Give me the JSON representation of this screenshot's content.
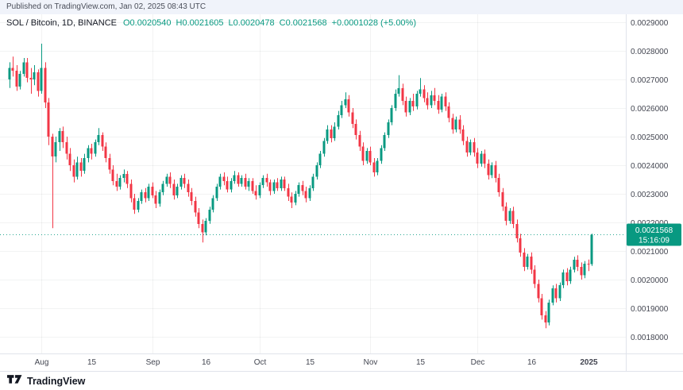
{
  "publish_bar": {
    "text": "Published on TradingView.com, Jan 02, 2025 08:43 UTC"
  },
  "legend": {
    "symbol": "SOL / Bitcoin, 1D, BINANCE",
    "open": "O0.0020540",
    "high": "H0.0021605",
    "low": "L0.0020478",
    "close": "C0.0021568",
    "change": "+0.0001028 (+5.00%)"
  },
  "footer": {
    "brand": "TradingView",
    "logo_icon": "tradingview-logo-icon"
  },
  "chart_data": {
    "type": "candlestick",
    "symbol": "SOL / Bitcoin",
    "interval": "1D",
    "exchange": "BINANCE",
    "title": "SOL / Bitcoin, 1D, BINANCE",
    "value_unit": 1e-07,
    "note": "candles are [open,high,low,close] in units of 0.0000001 BTC, one candle per day from 2024-07-23 to 2025-01-02",
    "price_axis": {
      "min": 0.0018,
      "max": 0.0029,
      "tick_step": 0.0001,
      "tick_labels": [
        "0.0029000",
        "0.0028000",
        "0.0027000",
        "0.0026000",
        "0.0025000",
        "0.0024000",
        "0.0023000",
        "0.0022000",
        "0.0021000",
        "0.0020000",
        "0.0019000",
        "0.0018000"
      ]
    },
    "time_axis": {
      "ticks": [
        {
          "text": "Aug",
          "index": 9
        },
        {
          "text": "15",
          "index": 23
        },
        {
          "text": "Sep",
          "index": 40
        },
        {
          "text": "16",
          "index": 55
        },
        {
          "text": "Oct",
          "index": 70
        },
        {
          "text": "15",
          "index": 84
        },
        {
          "text": "Nov",
          "index": 101
        },
        {
          "text": "15",
          "index": 115
        },
        {
          "text": "Dec",
          "index": 131
        },
        {
          "text": "16",
          "index": 146
        },
        {
          "text": "2025",
          "index": 162,
          "bold": true
        }
      ]
    },
    "last_price": {
      "value": "0.0021568",
      "countdown": "15:16:09"
    },
    "colors": {
      "up": "#089981",
      "down": "#f23645",
      "grid": "rgba(42,46,57,0.06)",
      "axis_line": "#e0e3eb",
      "axis_text": "#434651",
      "badge_text": "#ffffff"
    },
    "candles": [
      [
        27000,
        27600,
        26700,
        27400
      ],
      [
        27400,
        27800,
        27100,
        27300
      ],
      [
        27300,
        27500,
        26600,
        26750
      ],
      [
        26750,
        27300,
        26650,
        27200
      ],
      [
        27200,
        27750,
        27100,
        27600
      ],
      [
        27600,
        27750,
        26900,
        27050
      ],
      [
        27050,
        27400,
        26500,
        27000
      ],
      [
        27000,
        27500,
        26800,
        27250
      ],
      [
        27250,
        27350,
        26400,
        26600
      ],
      [
        26600,
        28250,
        26500,
        27400
      ],
      [
        27400,
        27600,
        26000,
        26200
      ],
      [
        26200,
        26350,
        24700,
        25000
      ],
      [
        25000,
        25100,
        21800,
        24300
      ],
      [
        24300,
        25000,
        24100,
        24800
      ],
      [
        24800,
        25300,
        24500,
        25200
      ],
      [
        25200,
        25350,
        24600,
        24800
      ],
      [
        24800,
        25000,
        24200,
        24400
      ],
      [
        24400,
        24600,
        23800,
        24000
      ],
      [
        24000,
        24200,
        23400,
        23600
      ],
      [
        23600,
        24300,
        23500,
        24100
      ],
      [
        24100,
        24250,
        23600,
        23800
      ],
      [
        23800,
        24400,
        23700,
        24250
      ],
      [
        24250,
        24700,
        24100,
        24600
      ],
      [
        24600,
        24750,
        24200,
        24400
      ],
      [
        24400,
        24900,
        24300,
        24800
      ],
      [
        24800,
        25300,
        24700,
        25050
      ],
      [
        25050,
        25150,
        24500,
        24650
      ],
      [
        24650,
        24800,
        24100,
        24250
      ],
      [
        24250,
        24400,
        23700,
        23850
      ],
      [
        23850,
        24000,
        23300,
        23450
      ],
      [
        23450,
        23700,
        23100,
        23250
      ],
      [
        23250,
        23650,
        23150,
        23550
      ],
      [
        23550,
        23850,
        23400,
        23700
      ],
      [
        23700,
        23800,
        23200,
        23350
      ],
      [
        23350,
        23500,
        22700,
        22850
      ],
      [
        22850,
        23000,
        22300,
        22450
      ],
      [
        22450,
        22850,
        22350,
        22750
      ],
      [
        22750,
        23150,
        22650,
        23050
      ],
      [
        23050,
        23200,
        22700,
        22850
      ],
      [
        22850,
        23350,
        22750,
        23250
      ],
      [
        23250,
        23400,
        22850,
        22950
      ],
      [
        22950,
        23100,
        22500,
        22650
      ],
      [
        22650,
        23150,
        22550,
        23050
      ],
      [
        23050,
        23450,
        22950,
        23350
      ],
      [
        23350,
        23700,
        23250,
        23600
      ],
      [
        23600,
        23750,
        23200,
        23350
      ],
      [
        23350,
        23500,
        22800,
        22950
      ],
      [
        22950,
        23350,
        22850,
        23250
      ],
      [
        23250,
        23650,
        23150,
        23550
      ],
      [
        23550,
        23700,
        23200,
        23350
      ],
      [
        23350,
        23500,
        22900,
        23050
      ],
      [
        23050,
        23200,
        22600,
        22750
      ],
      [
        22750,
        22900,
        22200,
        22350
      ],
      [
        22350,
        22500,
        21800,
        21950
      ],
      [
        21950,
        22100,
        21300,
        21650
      ],
      [
        21650,
        22150,
        21550,
        22050
      ],
      [
        22050,
        22550,
        21950,
        22450
      ],
      [
        22450,
        22950,
        22350,
        22850
      ],
      [
        22850,
        23350,
        22750,
        23250
      ],
      [
        23250,
        23700,
        23150,
        23600
      ],
      [
        23600,
        23750,
        23300,
        23450
      ],
      [
        23450,
        23600,
        23050,
        23150
      ],
      [
        23150,
        23550,
        23050,
        23450
      ],
      [
        23450,
        23800,
        23350,
        23650
      ],
      [
        23650,
        23750,
        23250,
        23350
      ],
      [
        23350,
        23650,
        23250,
        23550
      ],
      [
        23550,
        23700,
        23150,
        23250
      ],
      [
        23250,
        23550,
        23100,
        23450
      ],
      [
        23450,
        23550,
        23000,
        23100
      ],
      [
        23100,
        23300,
        22800,
        22950
      ],
      [
        22950,
        23400,
        22850,
        23300
      ],
      [
        23300,
        23650,
        23200,
        23550
      ],
      [
        23550,
        23700,
        23250,
        23400
      ],
      [
        23400,
        23500,
        22950,
        23100
      ],
      [
        23100,
        23500,
        23000,
        23400
      ],
      [
        23400,
        23550,
        23100,
        23200
      ],
      [
        23200,
        23600,
        23100,
        23500
      ],
      [
        23500,
        23600,
        23100,
        23200
      ],
      [
        23200,
        23350,
        22750,
        22900
      ],
      [
        22900,
        23050,
        22500,
        22700
      ],
      [
        22700,
        23100,
        22600,
        23000
      ],
      [
        23000,
        23400,
        22900,
        23300
      ],
      [
        23300,
        23450,
        22950,
        23100
      ],
      [
        23100,
        23250,
        22700,
        22850
      ],
      [
        22850,
        23300,
        22750,
        23200
      ],
      [
        23200,
        23700,
        23100,
        23600
      ],
      [
        23600,
        24100,
        23500,
        24000
      ],
      [
        24000,
        24500,
        23900,
        24400
      ],
      [
        24400,
        24950,
        24300,
        24850
      ],
      [
        24850,
        25400,
        24750,
        25250
      ],
      [
        25250,
        25400,
        24800,
        24950
      ],
      [
        24950,
        25500,
        24850,
        25350
      ],
      [
        25350,
        25900,
        25250,
        25750
      ],
      [
        25750,
        26250,
        25650,
        26100
      ],
      [
        26100,
        26550,
        26000,
        26300
      ],
      [
        26300,
        26450,
        25700,
        25850
      ],
      [
        25850,
        26000,
        25300,
        25450
      ],
      [
        25450,
        25600,
        24900,
        25050
      ],
      [
        25050,
        25200,
        24500,
        24650
      ],
      [
        24650,
        24800,
        24000,
        24150
      ],
      [
        24150,
        24600,
        24050,
        24500
      ],
      [
        24500,
        24650,
        24000,
        24100
      ],
      [
        24100,
        24250,
        23600,
        23750
      ],
      [
        23750,
        24250,
        23650,
        24150
      ],
      [
        24150,
        24700,
        24050,
        24600
      ],
      [
        24600,
        25150,
        24500,
        25050
      ],
      [
        25050,
        25600,
        24950,
        25500
      ],
      [
        25500,
        26100,
        25400,
        26000
      ],
      [
        26000,
        26650,
        25900,
        26500
      ],
      [
        26500,
        27150,
        26400,
        26700
      ],
      [
        26700,
        26850,
        26100,
        26250
      ],
      [
        26250,
        26400,
        25700,
        25850
      ],
      [
        25850,
        26350,
        25750,
        26250
      ],
      [
        26250,
        26500,
        25900,
        26050
      ],
      [
        26050,
        26600,
        25950,
        26500
      ],
      [
        26500,
        27050,
        26400,
        26650
      ],
      [
        26650,
        26800,
        26200,
        26350
      ],
      [
        26350,
        26550,
        25950,
        26100
      ],
      [
        26100,
        26600,
        26000,
        26450
      ],
      [
        26450,
        26700,
        26100,
        26250
      ],
      [
        26250,
        26450,
        25800,
        25950
      ],
      [
        25950,
        26500,
        25850,
        26400
      ],
      [
        26400,
        26550,
        25900,
        26050
      ],
      [
        26050,
        26200,
        25500,
        25650
      ],
      [
        25650,
        25800,
        25100,
        25250
      ],
      [
        25250,
        25700,
        25150,
        25600
      ],
      [
        25600,
        25750,
        25100,
        25250
      ],
      [
        25250,
        25400,
        24700,
        24850
      ],
      [
        24850,
        25000,
        24300,
        24450
      ],
      [
        24450,
        24900,
        24350,
        24800
      ],
      [
        24800,
        24950,
        24300,
        24450
      ],
      [
        24450,
        24600,
        23900,
        24050
      ],
      [
        24050,
        24500,
        23950,
        24400
      ],
      [
        24400,
        24550,
        23900,
        24050
      ],
      [
        24050,
        24200,
        23500,
        23650
      ],
      [
        23650,
        24100,
        23550,
        24000
      ],
      [
        24000,
        24150,
        23400,
        23550
      ],
      [
        23550,
        23700,
        22900,
        23050
      ],
      [
        23050,
        23200,
        22400,
        22550
      ],
      [
        22550,
        22700,
        21900,
        22050
      ],
      [
        22050,
        22500,
        21950,
        22400
      ],
      [
        22400,
        22550,
        21800,
        21950
      ],
      [
        21950,
        22100,
        21300,
        21450
      ],
      [
        21450,
        21600,
        20800,
        20950
      ],
      [
        20950,
        21100,
        20300,
        20450
      ],
      [
        20450,
        20900,
        20350,
        20800
      ],
      [
        20800,
        20950,
        20200,
        20350
      ],
      [
        20350,
        20500,
        19700,
        19850
      ],
      [
        19850,
        20000,
        19200,
        19350
      ],
      [
        19350,
        19500,
        18600,
        18750
      ],
      [
        18750,
        18900,
        18300,
        18500
      ],
      [
        18500,
        19300,
        18400,
        19200
      ],
      [
        19200,
        19800,
        19100,
        19700
      ],
      [
        19700,
        19850,
        19200,
        19350
      ],
      [
        19350,
        19900,
        19250,
        19800
      ],
      [
        19800,
        20350,
        19700,
        20250
      ],
      [
        20250,
        20400,
        19800,
        19950
      ],
      [
        19950,
        20450,
        19850,
        20350
      ],
      [
        20350,
        20800,
        20250,
        20700
      ],
      [
        20700,
        20850,
        20300,
        20450
      ],
      [
        20450,
        20600,
        20000,
        20150
      ],
      [
        20150,
        20650,
        20050,
        20550
      ],
      [
        20550,
        20700,
        20300,
        20540
      ],
      [
        20540,
        21605,
        20478,
        21568
      ]
    ]
  }
}
